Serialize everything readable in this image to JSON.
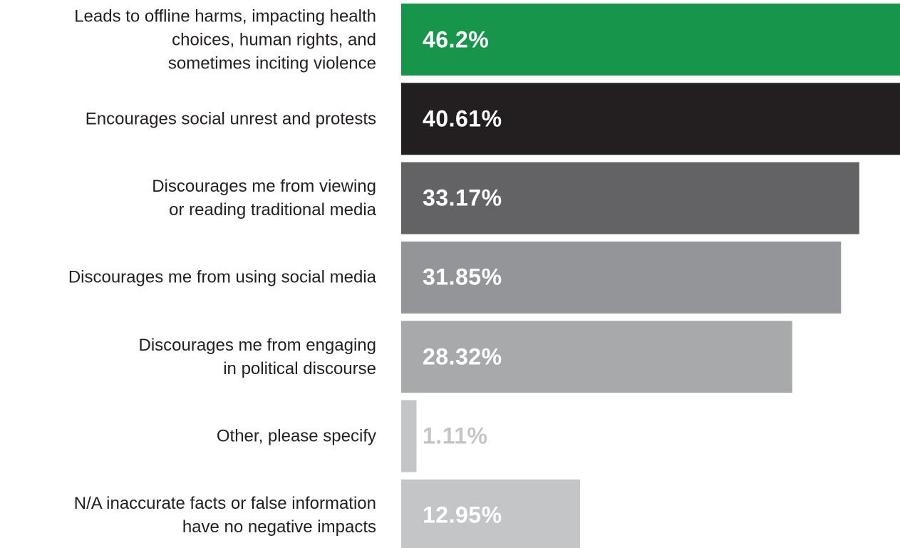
{
  "chart_data": {
    "type": "barh",
    "categories": [
      "Leads to offline harms, impacting health\nchoices, human rights, and\nsometimes inciting violence",
      "Encourages social unrest and protests",
      "Discourages me from viewing\nor reading traditional media",
      "Discourages me from using social media",
      "Discourages me from engaging\nin political discourse",
      "Other, please specify",
      "N/A inaccurate facts or false information\nhave no negative impacts"
    ],
    "values": [
      46.2,
      40.61,
      33.17,
      31.85,
      28.32,
      1.11,
      12.95
    ],
    "value_labels": [
      "46.2%",
      "40.61%",
      "33.17%",
      "31.85%",
      "28.32%",
      "1.11%",
      "12.95%"
    ],
    "colors": [
      "#16954b",
      "#231f20",
      "#636366",
      "#939598",
      "#a7a9ab",
      "#c4c5c7",
      "#c4c5c7"
    ],
    "label_colors": [
      "#ffffff",
      "#ffffff",
      "#ffffff",
      "#ffffff",
      "#ffffff",
      "#c4c5c7",
      "#ffffff"
    ]
  }
}
